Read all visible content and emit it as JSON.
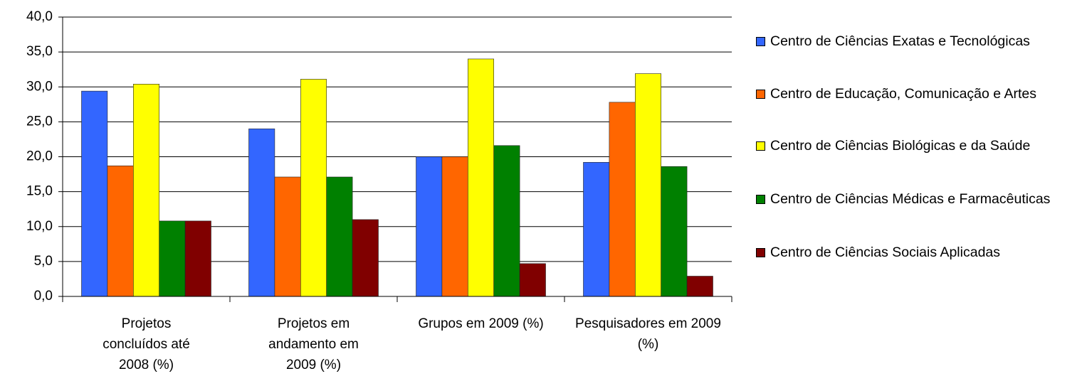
{
  "chart_data": {
    "type": "bar",
    "categories": [
      "Projetos concluídos até 2008 (%)",
      "Projetos em andamento em 2009 (%)",
      "Grupos em 2009 (%)",
      "Pesquisadores em 2009 (%)"
    ],
    "series": [
      {
        "name": "Centro de Ciências Exatas e Tecnológicas",
        "color": "#3366ff",
        "values": [
          29.4,
          24.0,
          20.0,
          19.2
        ]
      },
      {
        "name": "Centro de Educação, Comunicação e Artes",
        "color": "#ff6600",
        "values": [
          18.7,
          17.1,
          20.0,
          27.8
        ]
      },
      {
        "name": "Centro de Ciências Biológicas e da Saúde",
        "color": "#ffff00",
        "values": [
          30.4,
          31.1,
          34.0,
          31.9
        ]
      },
      {
        "name": "Centro de Ciências Médicas e Farmacêuticas",
        "color": "#008000",
        "values": [
          10.8,
          17.1,
          21.6,
          18.6
        ]
      },
      {
        "name": "Centro de Ciências Sociais Aplicadas",
        "color": "#800000",
        "values": [
          10.8,
          11.0,
          4.7,
          2.9
        ]
      }
    ],
    "ylim": [
      0,
      40
    ],
    "yticks": [
      {
        "value": 0,
        "label": "0,0"
      },
      {
        "value": 5,
        "label": "5,0"
      },
      {
        "value": 10,
        "label": "10,0"
      },
      {
        "value": 15,
        "label": "15,0"
      },
      {
        "value": 20,
        "label": "20,0"
      },
      {
        "value": 25,
        "label": "25,0"
      },
      {
        "value": 30,
        "label": "30,0"
      },
      {
        "value": 35,
        "label": "35,0"
      },
      {
        "value": 40,
        "label": "40,0"
      }
    ],
    "grid": true,
    "legend": "right"
  }
}
